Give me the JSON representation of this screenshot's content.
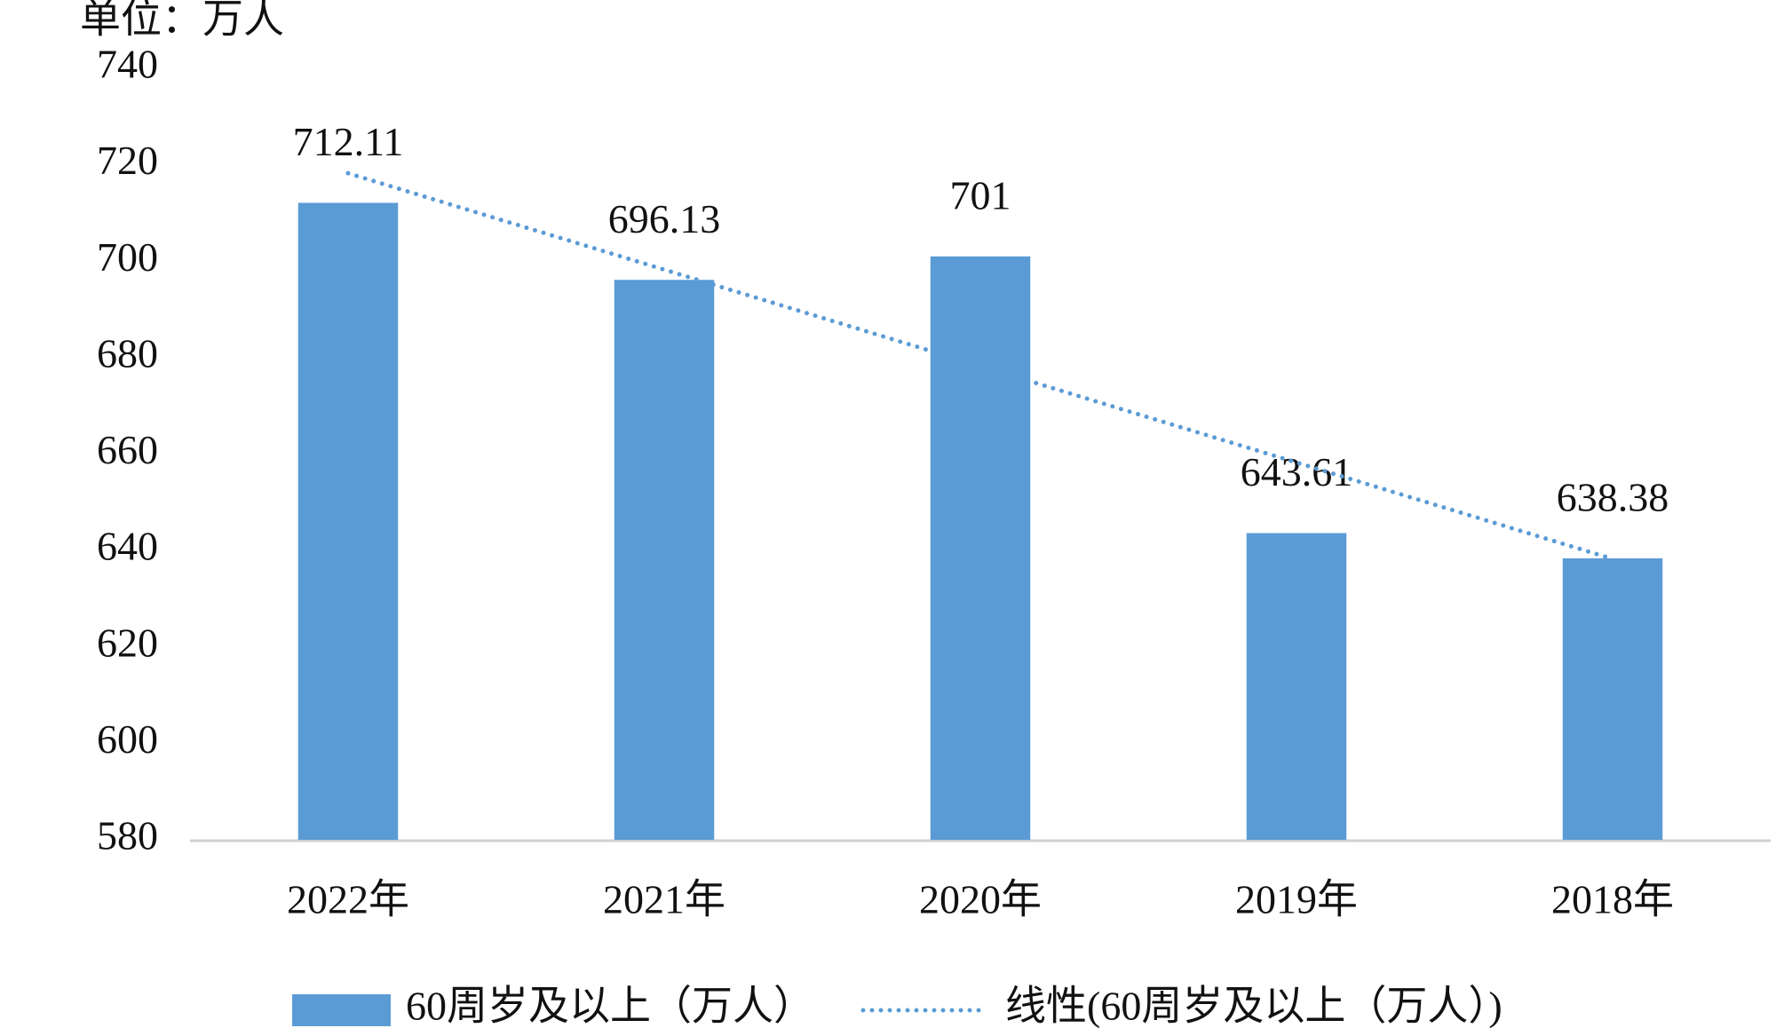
{
  "chart_data": {
    "type": "bar",
    "title": "单位：万人",
    "categories": [
      "2022年",
      "2021年",
      "2020年",
      "2019年",
      "2018年"
    ],
    "series": [
      {
        "name": "60周岁及以上（万人）",
        "color": "#5b9bd5",
        "values": [
          712.11,
          696.13,
          701,
          643.61,
          638.38
        ]
      },
      {
        "name": "线性(60周岁及以上（万人）)",
        "color": "#5b9bd5",
        "type": "trendline",
        "values": [
          718.24,
          698.25,
          678.25,
          658.25,
          638.25
        ]
      }
    ],
    "ylim": [
      580,
      740
    ],
    "yticks": [
      580,
      600,
      620,
      640,
      660,
      680,
      700,
      720,
      740
    ],
    "grid": false
  }
}
